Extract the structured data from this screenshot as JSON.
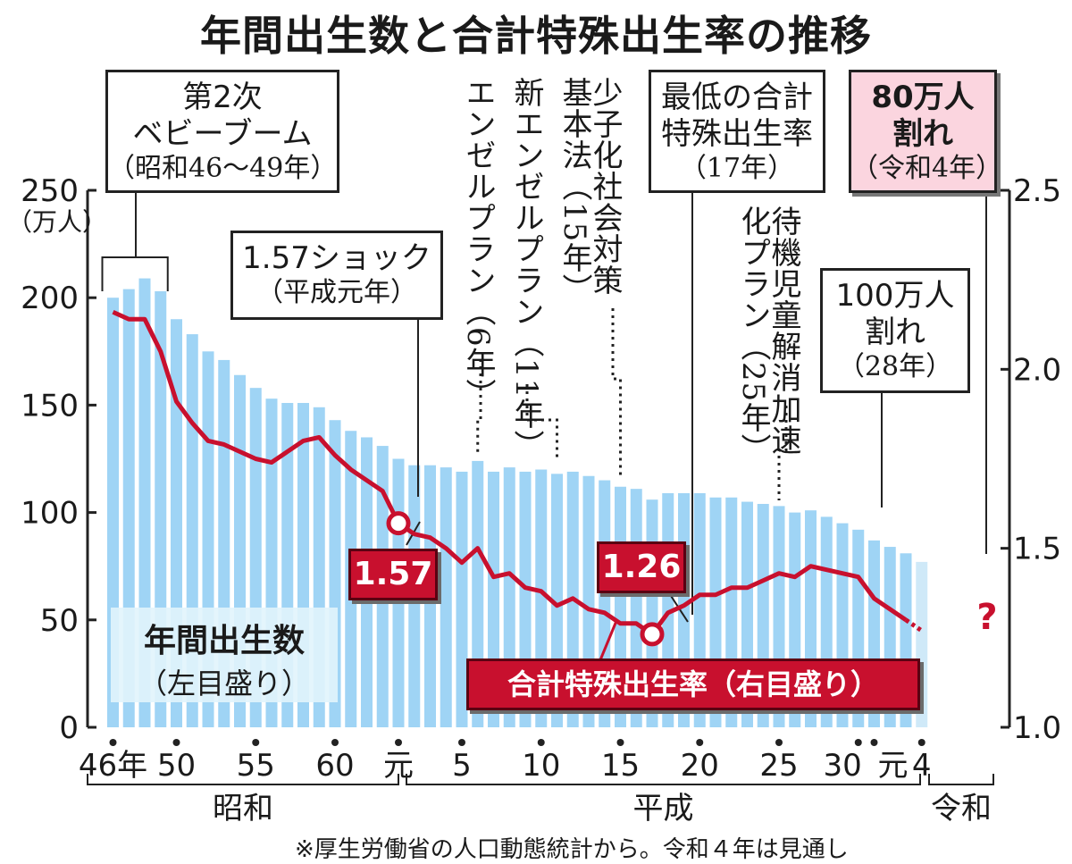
{
  "title": "年間出生数と合計特殊出生率の推移",
  "chart_data": {
    "type": "bar+line",
    "left_axis": {
      "unit": "（万人）",
      "ylim": [
        0,
        250
      ],
      "ticks": [
        "0",
        "50",
        "100",
        "150",
        "200",
        "250"
      ]
    },
    "right_axis": {
      "ylim": [
        1.0,
        2.5
      ],
      "ticks": [
        "1.0",
        "1.5",
        "2.0",
        "2.5"
      ]
    },
    "x_tick_labels": [
      "46年",
      "50",
      "55",
      "60",
      "元",
      "5",
      "10",
      "15",
      "20",
      "25",
      "30",
      "元",
      "4"
    ],
    "eras": [
      "昭和",
      "平成",
      "令和"
    ],
    "years": [
      "S46",
      "S47",
      "S48",
      "S49",
      "S50",
      "S51",
      "S52",
      "S53",
      "S54",
      "S55",
      "S56",
      "S57",
      "S58",
      "S59",
      "S60",
      "S61",
      "S62",
      "S63",
      "H1",
      "H2",
      "H3",
      "H4",
      "H5",
      "H6",
      "H7",
      "H8",
      "H9",
      "H10",
      "H11",
      "H12",
      "H13",
      "H14",
      "H15",
      "H16",
      "H17",
      "H18",
      "H19",
      "H20",
      "H21",
      "H22",
      "H23",
      "H24",
      "H25",
      "H26",
      "H27",
      "H28",
      "H29",
      "H30",
      "R1",
      "R2",
      "R3",
      "R4"
    ],
    "births": [
      200,
      204,
      209,
      203,
      190,
      183,
      175,
      171,
      164,
      158,
      153,
      151,
      151,
      149,
      143,
      138,
      135,
      131,
      125,
      122,
      122,
      121,
      119,
      124,
      119,
      121,
      119,
      120,
      118,
      119,
      117,
      115,
      112,
      111,
      106,
      109,
      109,
      109,
      107,
      107,
      105,
      104,
      103,
      100,
      101,
      98,
      95,
      92,
      87,
      84,
      81,
      77
    ],
    "tfr": [
      2.16,
      2.14,
      2.14,
      2.05,
      1.91,
      1.85,
      1.8,
      1.79,
      1.77,
      1.75,
      1.74,
      1.77,
      1.8,
      1.81,
      1.76,
      1.72,
      1.69,
      1.66,
      1.57,
      1.54,
      1.53,
      1.5,
      1.46,
      1.5,
      1.42,
      1.43,
      1.39,
      1.38,
      1.34,
      1.36,
      1.33,
      1.32,
      1.29,
      1.29,
      1.26,
      1.32,
      1.34,
      1.37,
      1.37,
      1.39,
      1.39,
      1.41,
      1.43,
      1.42,
      1.45,
      1.44,
      1.43,
      1.42,
      1.36,
      1.33,
      1.3,
      1.27
    ],
    "projected_last": true
  },
  "annotations": {
    "baby_boom": {
      "l1": "第2次",
      "l2": "ベビーブーム",
      "l3": "（昭和46〜49年）"
    },
    "shock": {
      "l1": "1.57ショック",
      "l2": "（平成元年）"
    },
    "angel": {
      "t": "エンゼルプラン",
      "y": "（6年）"
    },
    "new_angel": {
      "t": "新エンゼルプラン",
      "y": "（11年）"
    },
    "basic_law": {
      "t": "少子化社会対策基本法",
      "y": "（15年）"
    },
    "lowest": {
      "l1": "最低の合計",
      "l2": "特殊出生率",
      "l3": "（17年）"
    },
    "taiki": {
      "t": "待機児童解消加速化プラン",
      "y": "（25年）"
    },
    "under100": {
      "l1": "100万人",
      "l2": "割れ",
      "l3": "（28年）"
    },
    "under80": {
      "l1": "80万人",
      "l2": "割れ",
      "l3": "（令和4年）"
    }
  },
  "value_tags": {
    "tfr_157": "1.57",
    "tfr_126": "1.26"
  },
  "projection_mark": "?",
  "legend": {
    "births_l1": "年間出生数",
    "births_l2": "（左目盛り）",
    "tfr": "合計特殊出生率（右目盛り）"
  },
  "source": "※厚生労働省の人口動態統計から。令和４年は見通し",
  "colors": {
    "bar": "#9fd4f5",
    "bar_projected": "#cfe9f8",
    "line": "#c8102e",
    "tag_bg": "#c8102e",
    "under80_bg": "#fbd5df"
  }
}
